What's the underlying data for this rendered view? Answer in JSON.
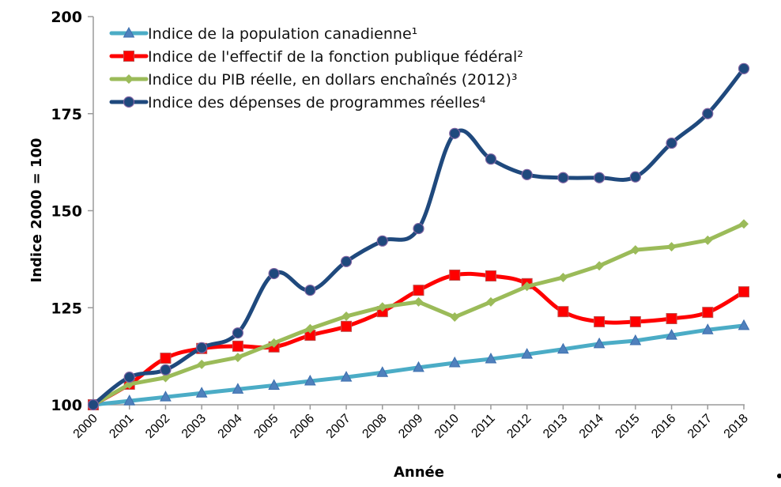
{
  "chart_data": {
    "type": "line",
    "title": "",
    "xlabel": "Année",
    "ylabel": "Indice  2000 = 100",
    "ylim": [
      100,
      200
    ],
    "yticks": [
      100,
      125,
      150,
      175,
      200
    ],
    "ytick_labels": [
      "100",
      "125",
      "150",
      "175",
      "200"
    ],
    "grid": false,
    "legend_position": "top-left",
    "categories": [
      "2000",
      "2001",
      "2002",
      "2003",
      "2004",
      "2005",
      "2006",
      "2007",
      "2008",
      "2009",
      "2010",
      "2011",
      "2012",
      "2013",
      "2014",
      "2015",
      "2016",
      "2017",
      "2018"
    ],
    "series": [
      {
        "name": "Indice de la population canadienne¹",
        "color": "#4BACC6",
        "marker": "triangle",
        "marker_fill": "#4F81BD",
        "smooth": false,
        "values": [
          100,
          101,
          102,
          103,
          104,
          105,
          106.1,
          107.1,
          108.3,
          109.6,
          110.8,
          111.8,
          113,
          114.3,
          115.7,
          116.5,
          117.9,
          119.3,
          120.4
        ]
      },
      {
        "name": "Indice de l'effectif de la fonction publique fédéral²",
        "color": "#FF0000",
        "marker": "square",
        "marker_fill": "#FF0000",
        "smooth": true,
        "values": [
          100,
          105.3,
          112,
          114.5,
          115.1,
          114.9,
          117.9,
          120.2,
          124,
          129.5,
          133.4,
          133.2,
          131.2,
          124,
          121.4,
          121.4,
          122.2,
          123.8,
          129.1
        ]
      },
      {
        "name": "Indice du PIB réelle, en dollars enchaînés (2012)³",
        "color": "#9BBB59",
        "marker": "diamond",
        "marker_fill": "#9BBB59",
        "smooth": false,
        "values": [
          100,
          105.3,
          107,
          110.4,
          112.2,
          115.9,
          119.6,
          122.8,
          125.2,
          126.5,
          122.6,
          126.5,
          130.5,
          132.8,
          135.8,
          139.9,
          140.7,
          142.4,
          146.6
        ]
      },
      {
        "name": "Indice des dépenses de programmes réelles⁴",
        "color": "#1F497D",
        "marker": "circle",
        "marker_fill": "#1F497D",
        "smooth": true,
        "values": [
          100,
          107.1,
          109,
          114.7,
          118.5,
          133.8,
          129.5,
          136.9,
          142.2,
          145.4,
          169.9,
          163.3,
          159.3,
          158.5,
          158.5,
          158.7,
          167.4,
          175,
          186.6
        ]
      }
    ]
  }
}
